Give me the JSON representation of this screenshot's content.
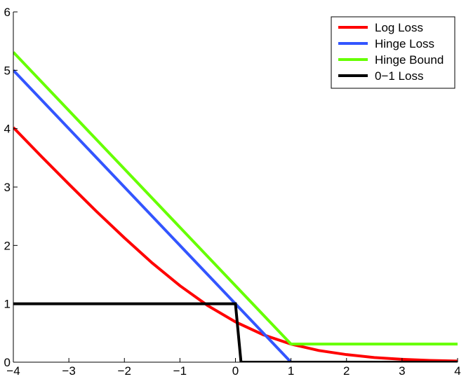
{
  "chart_data": {
    "type": "line",
    "title": "",
    "xlabel": "",
    "ylabel": "",
    "xlim": [
      -4,
      4
    ],
    "ylim": [
      0,
      6
    ],
    "x_ticks": [
      -4,
      -3,
      -2,
      -1,
      0,
      1,
      2,
      3,
      4
    ],
    "y_ticks": [
      0,
      1,
      2,
      3,
      4,
      5,
      6
    ],
    "x_tick_labels": [
      "−4",
      "−3",
      "−2",
      "−1",
      "0",
      "1",
      "2",
      "3",
      "4"
    ],
    "y_tick_labels": [
      "0",
      "1",
      "2",
      "3",
      "4",
      "5",
      "6"
    ],
    "grid": false,
    "legend_position": "top-right",
    "series": [
      {
        "name": "Log Loss",
        "color": "#ff0000",
        "x": [
          -4,
          -3.5,
          -3,
          -2.5,
          -2,
          -1.5,
          -1,
          -0.5,
          0,
          0.5,
          1,
          1.5,
          2,
          2.5,
          3,
          3.5,
          4
        ],
        "y": [
          4.02,
          3.53,
          3.05,
          2.58,
          2.13,
          1.7,
          1.31,
          0.97,
          0.69,
          0.47,
          0.31,
          0.2,
          0.13,
          0.08,
          0.05,
          0.03,
          0.02
        ]
      },
      {
        "name": "Hinge Loss",
        "color": "#3355ff",
        "x": [
          -4,
          1
        ],
        "y": [
          5,
          0
        ]
      },
      {
        "name": "Hinge Bound",
        "color": "#66ff00",
        "x": [
          -4,
          1,
          4
        ],
        "y": [
          5.31,
          0.31,
          0.31
        ]
      },
      {
        "name": "0−1 Loss",
        "color": "#000000",
        "x": [
          -4,
          0,
          0.1,
          4
        ],
        "y": [
          1,
          1,
          0,
          0
        ]
      }
    ]
  }
}
